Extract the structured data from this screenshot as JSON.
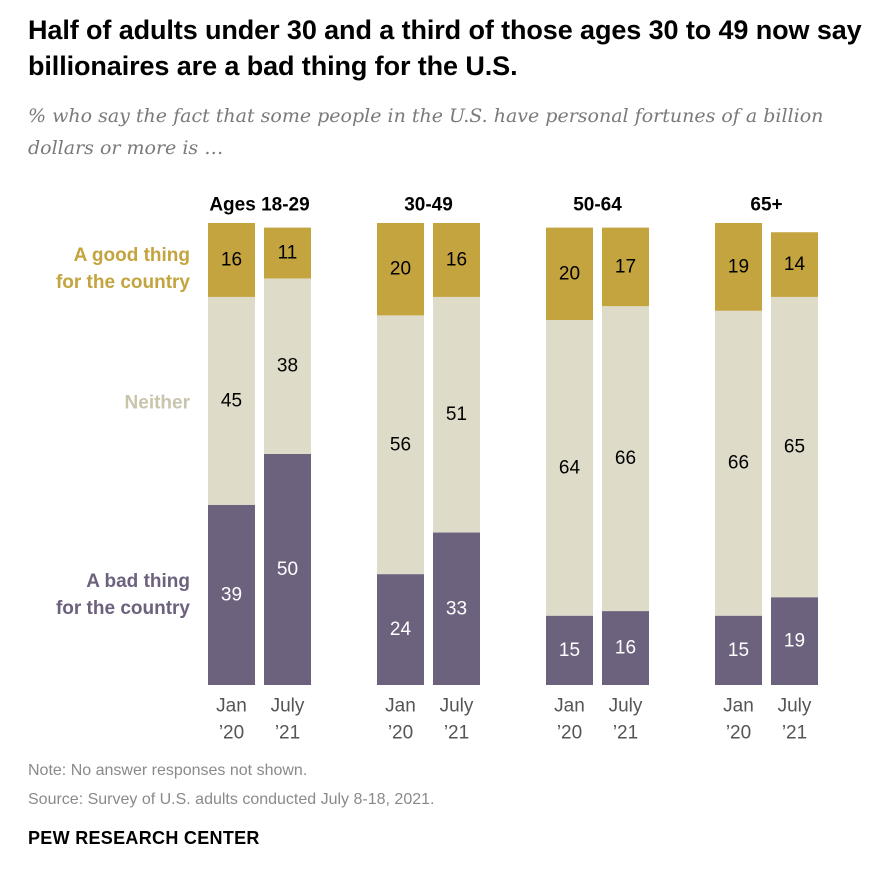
{
  "title": "Half of adults under 30 and a third of those ages 30 to 49 now say billionaires are a bad thing for the U.S.",
  "subtitle": "% who say the fact that some people in the U.S. have personal fortunes of a billion dollars or more is …",
  "colors": {
    "good": "#C4A43E",
    "neither": "#DEDBC8",
    "bad": "#6D627E",
    "good_label": "#C4A43E",
    "neither_label": "#C9C5AC",
    "bad_label": "#6D627E"
  },
  "chart_data": {
    "type": "bar",
    "stacked": true,
    "scale_max": 100,
    "series_labels": {
      "good": [
        "A good thing",
        "for the country"
      ],
      "neither": [
        "Neither"
      ],
      "bad": [
        "A bad thing",
        "for the country"
      ]
    },
    "groups": [
      {
        "label": "Ages 18-29",
        "bars": [
          {
            "period": [
              "Jan",
              "’20"
            ],
            "good": 16,
            "neither": 45,
            "bad": 39
          },
          {
            "period": [
              "July",
              "’21"
            ],
            "good": 11,
            "neither": 38,
            "bad": 50
          }
        ]
      },
      {
        "label": "30-49",
        "bars": [
          {
            "period": [
              "Jan",
              "’20"
            ],
            "good": 20,
            "neither": 56,
            "bad": 24
          },
          {
            "period": [
              "July",
              "’21"
            ],
            "good": 16,
            "neither": 51,
            "bad": 33
          }
        ]
      },
      {
        "label": "50-64",
        "bars": [
          {
            "period": [
              "Jan",
              "’20"
            ],
            "good": 20,
            "neither": 64,
            "bad": 15
          },
          {
            "period": [
              "July",
              "’21"
            ],
            "good": 17,
            "neither": 66,
            "bad": 16
          }
        ]
      },
      {
        "label": "65+",
        "bars": [
          {
            "period": [
              "Jan",
              "’20"
            ],
            "good": 19,
            "neither": 66,
            "bad": 15
          },
          {
            "period": [
              "July",
              "’21"
            ],
            "good": 14,
            "neither": 65,
            "bad": 19
          }
        ]
      }
    ]
  },
  "notes": {
    "note": "Note: No answer responses not shown.",
    "source": "Source: Survey of U.S. adults conducted July 8-18, 2021."
  },
  "branding": "PEW RESEARCH CENTER"
}
